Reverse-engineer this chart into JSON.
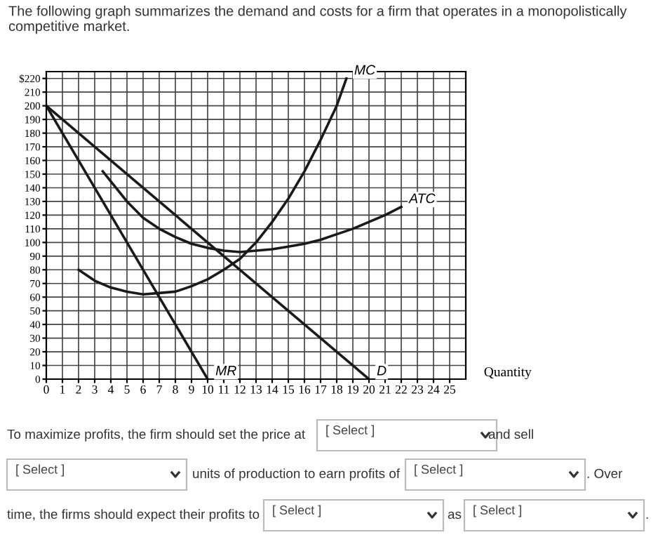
{
  "chart_data": {
    "type": "line",
    "title": "The following graph summarizes the demand and costs for a firm that operates in a monopolistically competitive market.",
    "xlabel": "Quantity",
    "series": [
      {
        "name": "D",
        "color": "#1a1a1a",
        "x": [
          0,
          20
        ],
        "values": [
          200,
          0
        ]
      },
      {
        "name": "MR",
        "color": "#1a1a1a",
        "x": [
          0,
          10
        ],
        "values": [
          200,
          0
        ]
      },
      {
        "name": "MC",
        "color": "#1a1a1a",
        "x": [
          2,
          3,
          4,
          5,
          6,
          7,
          8,
          9,
          10,
          11,
          12,
          13,
          14,
          15,
          16,
          17,
          18,
          18.6
        ],
        "values": [
          80,
          72,
          67,
          64,
          62,
          63,
          64,
          68,
          73,
          80,
          88,
          100,
          115,
          132,
          152,
          175,
          200,
          220
        ]
      },
      {
        "name": "ATC",
        "color": "#1a1a1a",
        "x": [
          3.5,
          5,
          6,
          7,
          8,
          9,
          10,
          11,
          12,
          13,
          14,
          15,
          16,
          17,
          18,
          19,
          20,
          21,
          22
        ],
        "values": [
          152,
          130,
          118,
          110,
          104,
          99,
          96,
          94,
          93,
          94,
          95,
          97,
          99,
          102,
          106,
          110,
          115,
          120,
          126
        ]
      }
    ],
    "xlim": [
      0,
      26
    ],
    "ylim": [
      0,
      225
    ],
    "xticks": [
      0,
      1,
      2,
      3,
      4,
      5,
      6,
      7,
      8,
      9,
      10,
      11,
      12,
      13,
      14,
      15,
      16,
      17,
      18,
      19,
      20,
      21,
      22,
      23,
      24,
      25
    ],
    "yticks": [
      0,
      10,
      20,
      30,
      40,
      50,
      60,
      70,
      80,
      90,
      100,
      110,
      120,
      130,
      140,
      150,
      160,
      170,
      180,
      190,
      200,
      210,
      {
        "value": 220,
        "label": "$220"
      }
    ],
    "grid": true,
    "legend": false,
    "marker": "none",
    "line_style": "solid",
    "annotations": [
      "To maximize profits, the firm should set the price at",
      "[ Select ]",
      "and sell",
      "[ Select ]",
      "units of production to earn profits of",
      "[ Select ]",
      ". Over",
      "time, the firms should expect their profits to",
      "[ Select ]",
      "as",
      "[ Select ]",
      "."
    ]
  }
}
